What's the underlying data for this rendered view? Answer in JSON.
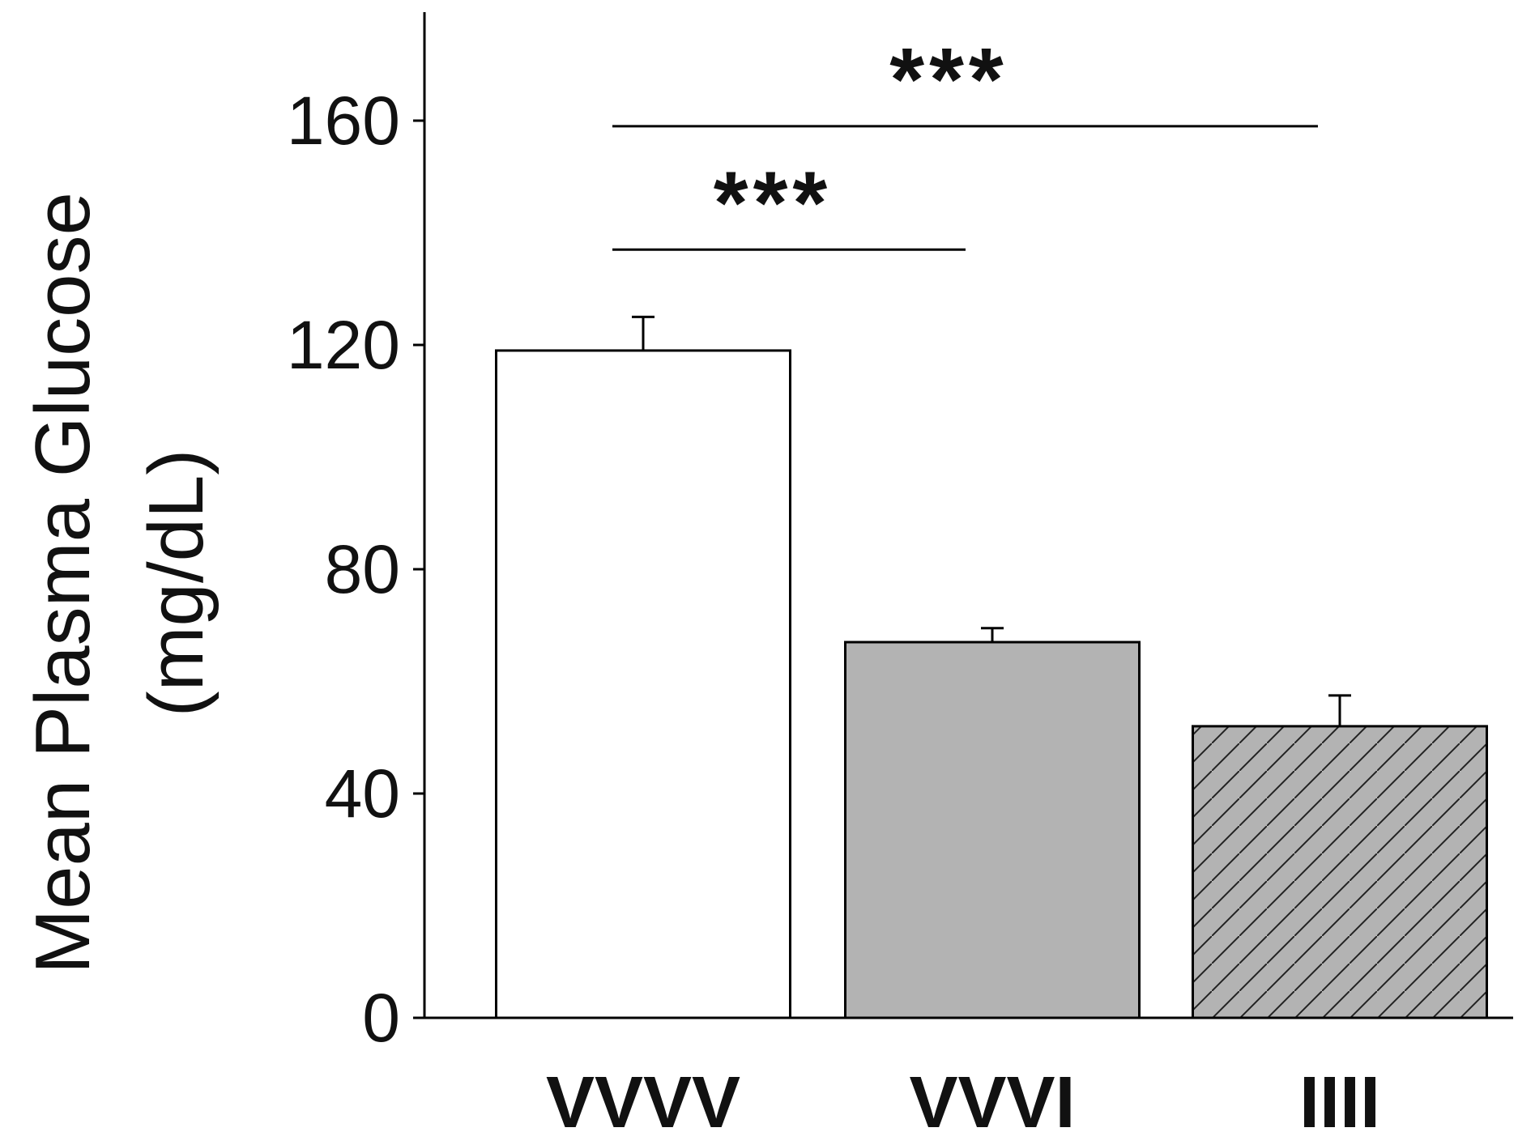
{
  "chart_data": {
    "type": "bar",
    "categories": [
      "VVVV",
      "VVVI",
      "IIII"
    ],
    "values": [
      119,
      67,
      52
    ],
    "errors": [
      6,
      2.5,
      5.5
    ],
    "fills": [
      "#ffffff",
      "#b3b3b3",
      "#b3b3b3"
    ],
    "hatched": [
      false,
      false,
      true
    ],
    "ylabel_line1": "Mean Plasma Glucose",
    "ylabel_line2": "(mg/dL)",
    "ylim": [
      0,
      180
    ],
    "yticks": [
      0,
      40,
      80,
      120,
      160
    ],
    "grid": false,
    "significance": [
      {
        "from": 0,
        "to": 1,
        "label": "***",
        "y": 137
      },
      {
        "from": 0,
        "to": 2,
        "label": "***",
        "y": 159
      }
    ]
  }
}
